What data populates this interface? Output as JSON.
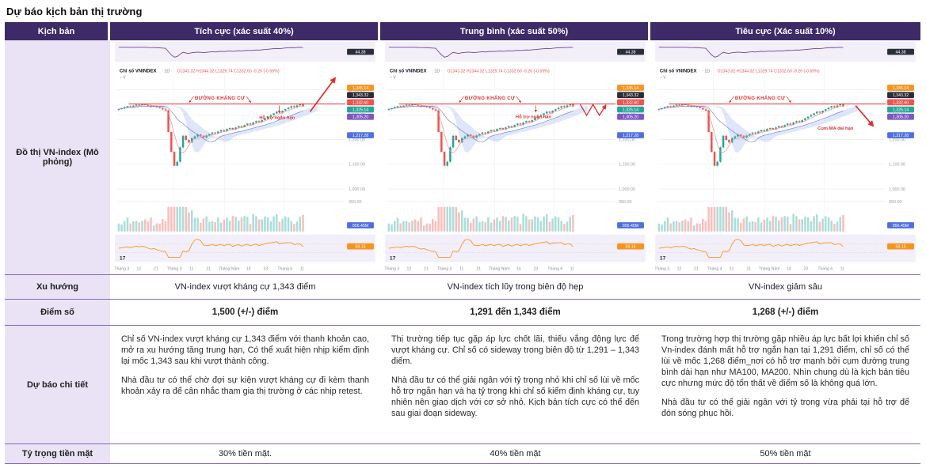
{
  "page": {
    "title": "Dự báo kịch bản thị trường"
  },
  "table": {
    "header": {
      "scenario_label": "Kịch bản",
      "columns": [
        {
          "label": "Tích cực (xác suất 40%)"
        },
        {
          "label": "Trung bình (xác suất 50%)"
        },
        {
          "label": "Tiêu cực (Xác suất 10%)"
        }
      ]
    },
    "rows": {
      "chart": {
        "label": "Đồ thị VN-index (Mô phỏng)"
      },
      "trend": {
        "label": "Xu hướng",
        "values": [
          "VN-index vượt kháng cự 1,343 điểm",
          "VN-index tích lũy trong biên độ hẹp",
          "VN-index giảm sâu"
        ]
      },
      "points": {
        "label": "Điểm số",
        "values": [
          "1,500 (+/-) điểm",
          "1,291 đến 1,343 điểm",
          "1,268 (+/-) điểm"
        ]
      },
      "detail": {
        "label": "Dự báo chi tiết",
        "values": [
          [
            "Chỉ số VN-index vượt kháng cự 1,343 điểm với thanh khoản cao, mở ra xu hướng tăng trung hạn, Có thể xuất hiện nhịp kiểm định lại mốc 1,343 sau khi vượt thành công.",
            "Nhà đầu tư có thể chờ đợi sự kiện vượt kháng cự đi kèm thanh khoản xảy ra để cân nhắc tham gia thị trường ở các nhịp retest."
          ],
          [
            "Thị trường tiếp tục gặp áp lực chốt lãi, thiếu vắng động lực để vượt kháng cự. Chỉ số có sideway trong biên độ từ 1,291 – 1,343 điểm.",
            "Nhà đầu tư có thể giải ngân với tỷ trọng nhỏ khi chỉ số lùi về mốc hỗ trợ ngắn hạn và hạ tỷ trọng khi chỉ số kiểm định kháng cự, tuy nhiên nên giao dịch với cơ sở nhỏ. Kịch bản tích cực có thể đến sau giai đoạn sideway."
          ],
          [
            "Trong trường hợp thị trường gặp nhiều áp lực bất lợi khiến chỉ số Vn-index đánh mất hỗ trợ ngắn hạn tại 1,291 điểm, chỉ số có thể lùi về mốc 1,268 điểm_nơi có hỗ trợ mạnh bởi cụm đường trung bình dài hạn như MA100, MA200. Nhìn chung dù là kịch bản tiêu cực nhưng mức độ tổn thất về điểm số là không quá lớn.",
            "Nhà đầu tư có thể giải ngân với tỷ trọng vừa phải tại hỗ trợ để đón sóng phục hồi."
          ]
        ]
      },
      "cash": {
        "label": "Tỷ trọng tiền mặt",
        "values": [
          "30% tiền mặt.",
          "40% tiền mặt",
          "50% tiền mặt"
        ]
      }
    }
  },
  "chart_data": {
    "type": "candlestick",
    "symbol": "Chỉ số VNINDEX",
    "interval": "1D",
    "ohlc": "O1343.32 H1344.32 L1329.74 C1332.60 -9.26 (-0.69%)",
    "sub_header": "~ V",
    "logo_text": "17",
    "resistance": {
      "price": 1343,
      "label": "ĐƯỜNG KHÁNG CỰ"
    },
    "price_domain": [
      940,
      1470
    ],
    "closes": [
      1322,
      1326,
      1330,
      1334,
      1331,
      1336,
      1340,
      1338,
      1342,
      1340,
      1336,
      1332,
      1335,
      1330,
      1326,
      1321,
      1317,
      1230,
      1150,
      1094,
      1110,
      1168,
      1215,
      1198,
      1188,
      1205,
      1212,
      1220,
      1215,
      1208,
      1216,
      1222,
      1228,
      1224,
      1232,
      1238,
      1234,
      1242,
      1246,
      1240,
      1248,
      1254,
      1250,
      1258,
      1264,
      1260,
      1268,
      1274,
      1270,
      1278,
      1285,
      1292,
      1298,
      1305,
      1312,
      1308,
      1316,
      1322,
      1328,
      1334,
      1330,
      1337,
      1342,
      1333
    ],
    "x_labels": [
      {
        "label": "Tháng 3",
        "f": 0.02
      },
      {
        "label": "12",
        "f": 0.095
      },
      {
        "label": "21",
        "f": 0.17
      },
      {
        "label": "Tháng 4",
        "f": 0.25
      },
      {
        "label": "11",
        "f": 0.325
      },
      {
        "label": "21",
        "f": 0.4
      },
      {
        "label": "Tháng Năm",
        "f": 0.49
      },
      {
        "label": "14",
        "f": 0.575
      },
      {
        "label": "23",
        "f": 0.65
      },
      {
        "label": "Tháng 6",
        "f": 0.735
      },
      {
        "label": "11",
        "f": 0.81
      }
    ],
    "y_gridlines": [
      {
        "value": 1400,
        "label": "1,400.00"
      },
      {
        "value": 1300,
        "label": "1,300.00"
      },
      {
        "value": 1200,
        "label": "1,200.00"
      },
      {
        "value": 1100,
        "label": "1,100.00"
      },
      {
        "value": 1000,
        "label": "1,000.00"
      },
      {
        "value": 950,
        "label": "950.00"
      }
    ],
    "price_badges": [
      {
        "label": "1,345.14",
        "color": "#f7941d"
      },
      {
        "label": "1,343.32",
        "color": "#2a2e39"
      },
      {
        "label": "1,332.60",
        "color": "#ef5350"
      },
      {
        "label": "1,325.14",
        "color": "#26a69a"
      },
      {
        "label": "1,305.20",
        "color": "#7e57c2"
      }
    ],
    "mid_badge": {
      "price": 1217,
      "label": "1,217.28",
      "color": "#4f6fe0"
    },
    "volume_badge": {
      "label": "856.45M",
      "color": "#4f6fe0"
    },
    "oscillator_badge": {
      "label": "59.15",
      "color": "#f7941d"
    },
    "top_badge": {
      "label": "44.38",
      "color": "#2a2e39"
    }
  },
  "charts": [
    {
      "name": "tich-cuc",
      "annotation": {
        "type": "breakout-up",
        "label": "Hỗ trợ ngắn hạn",
        "lx": 0.7,
        "lprice": 1283
      }
    },
    {
      "name": "trung-binh",
      "annotation": {
        "type": "sideways",
        "label": "Hỗ trợ ngắn hạn",
        "lx": 0.64,
        "lprice": 1286
      }
    },
    {
      "name": "tieu-cuc",
      "annotation": {
        "type": "down",
        "label": "Cụm MA dài hạn",
        "lx": 0.78,
        "lprice": 1240
      }
    }
  ]
}
